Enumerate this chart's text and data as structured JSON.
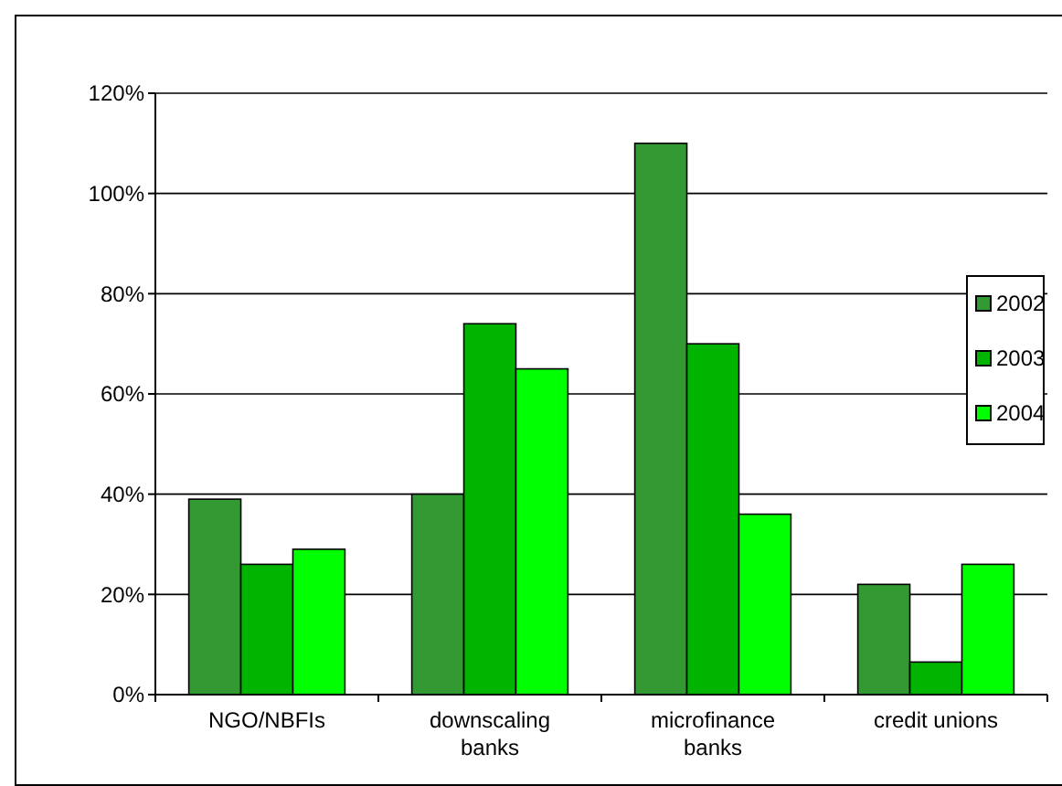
{
  "chart_data": {
    "type": "bar",
    "categories": [
      "NGO/NBFIs",
      "downscaling banks",
      "microfinance banks",
      "credit unions"
    ],
    "series": [
      {
        "name": "2002",
        "color": "#339933",
        "values": [
          39,
          40,
          110,
          22
        ]
      },
      {
        "name": "2003",
        "color": "#00b400",
        "values": [
          26,
          74,
          70,
          6.5
        ]
      },
      {
        "name": "2004",
        "color": "#00ff00",
        "values": [
          29,
          65,
          36,
          26
        ]
      }
    ],
    "ylim": [
      0,
      120
    ],
    "yticks": [
      {
        "value": 0,
        "label": "0%"
      },
      {
        "value": 20,
        "label": "20%"
      },
      {
        "value": 40,
        "label": "40%"
      },
      {
        "value": 60,
        "label": "60%"
      },
      {
        "value": 80,
        "label": "80%"
      },
      {
        "value": 100,
        "label": "100%"
      },
      {
        "value": 120,
        "label": "120%"
      }
    ],
    "grid": "y",
    "legend": "right"
  }
}
